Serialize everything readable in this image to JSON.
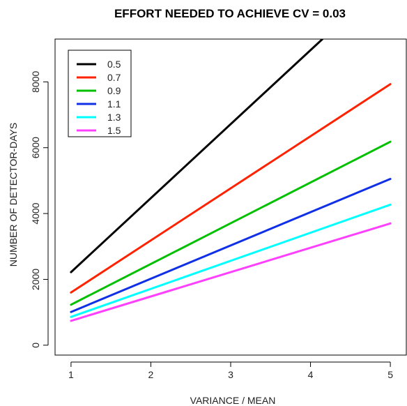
{
  "chart_data": {
    "type": "line",
    "title": "EFFORT  NEEDED  TO ACHIEVE  CV = 0.03",
    "xlabel": "VARIANCE / MEAN",
    "ylabel": "NUMBER  OF  DETECTOR-DAYS",
    "xlim": [
      0.8,
      5.2
    ],
    "ylim": [
      -300,
      9300
    ],
    "xticks": [
      1,
      2,
      3,
      4,
      5
    ],
    "yticks": [
      0,
      2000,
      4000,
      6000,
      8000
    ],
    "grid": false,
    "legend_position": "top-left",
    "series": [
      {
        "name": "0.5",
        "color": "#000000",
        "points": [
          [
            1,
            2220
          ],
          [
            4.15,
            9300
          ]
        ]
      },
      {
        "name": "0.7",
        "color": "#ff2200",
        "points": [
          [
            1,
            1600
          ],
          [
            5,
            7930
          ]
        ]
      },
      {
        "name": "0.9",
        "color": "#00c000",
        "points": [
          [
            1,
            1230
          ],
          [
            5,
            6180
          ]
        ]
      },
      {
        "name": "1.1",
        "color": "#1030e8",
        "points": [
          [
            1,
            1010
          ],
          [
            5,
            5050
          ]
        ]
      },
      {
        "name": "1.3",
        "color": "#00ffff",
        "points": [
          [
            1,
            860
          ],
          [
            5,
            4270
          ]
        ]
      },
      {
        "name": "1.5",
        "color": "#ff40ff",
        "points": [
          [
            1,
            740
          ],
          [
            5,
            3700
          ]
        ]
      }
    ]
  }
}
